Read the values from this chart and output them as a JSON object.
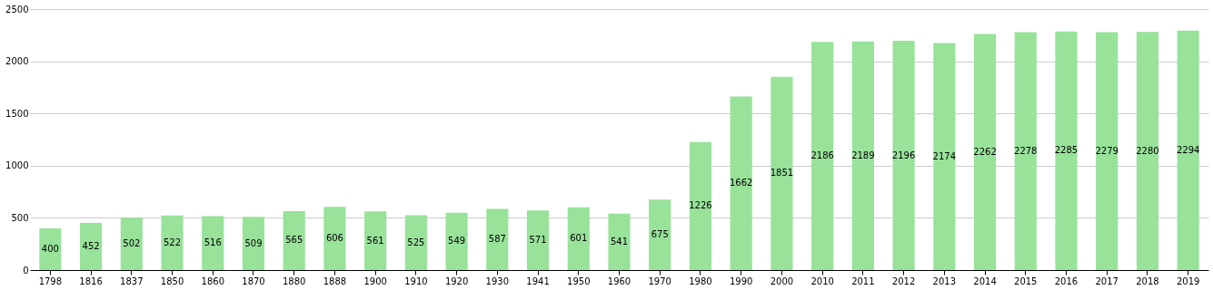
{
  "chart_data": {
    "type": "bar",
    "categories": [
      "1798",
      "1816",
      "1837",
      "1850",
      "1860",
      "1870",
      "1880",
      "1888",
      "1900",
      "1910",
      "1920",
      "1930",
      "1941",
      "1950",
      "1960",
      "1970",
      "1980",
      "1990",
      "2000",
      "2010",
      "2011",
      "2012",
      "2013",
      "2014",
      "2015",
      "2016",
      "2017",
      "2018",
      "2019"
    ],
    "values": [
      400,
      452,
      502,
      522,
      516,
      509,
      565,
      606,
      561,
      525,
      549,
      587,
      571,
      601,
      541,
      675,
      1226,
      1662,
      1851,
      2186,
      2189,
      2196,
      2174,
      2262,
      2278,
      2285,
      2279,
      2280,
      2294
    ],
    "color": "#98e29a",
    "ylim": [
      0,
      2500
    ],
    "yticks": [
      0,
      500,
      1000,
      1500,
      2000,
      2500
    ],
    "grid": "y",
    "data_labels": true
  }
}
